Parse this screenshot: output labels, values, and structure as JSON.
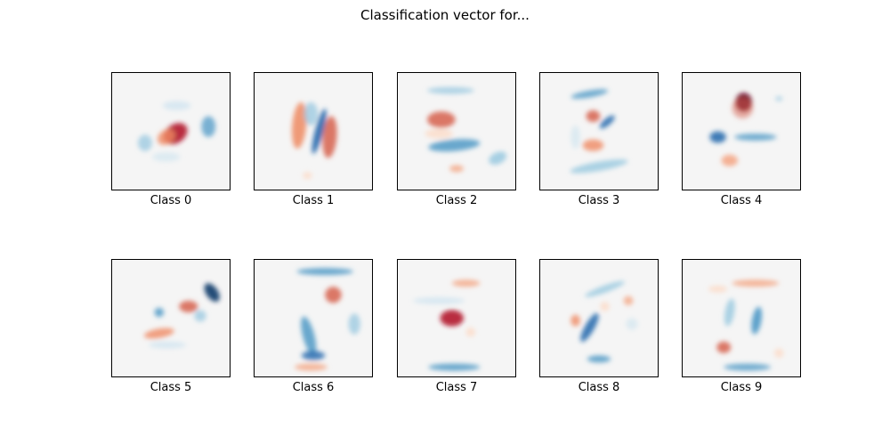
{
  "title": "Classification vector for...",
  "chart_data": {
    "type": "heatmap",
    "title": "Classification vector for...",
    "colormap": "RdBu",
    "background_color": "#f5f5f5",
    "panels": [
      {
        "label": "Class 0",
        "blobs": [
          {
            "x": 0.54,
            "y": 0.52,
            "w": 0.11,
            "h": 0.08,
            "rot": -35,
            "color": "#b2182b",
            "opacity": 0.9
          },
          {
            "x": 0.46,
            "y": 0.55,
            "w": 0.08,
            "h": 0.06,
            "rot": -35,
            "color": "#ef8a62",
            "opacity": 0.8
          },
          {
            "x": 0.82,
            "y": 0.46,
            "w": 0.06,
            "h": 0.09,
            "rot": 0,
            "color": "#4393c3",
            "opacity": 0.7
          },
          {
            "x": 0.28,
            "y": 0.6,
            "w": 0.06,
            "h": 0.07,
            "rot": 0,
            "color": "#92c5de",
            "opacity": 0.7
          },
          {
            "x": 0.55,
            "y": 0.28,
            "w": 0.12,
            "h": 0.04,
            "rot": 0,
            "color": "#d1e5f0",
            "opacity": 0.8
          },
          {
            "x": 0.46,
            "y": 0.72,
            "w": 0.12,
            "h": 0.04,
            "rot": 0,
            "color": "#d1e5f0",
            "opacity": 0.7
          }
        ]
      },
      {
        "label": "Class 1",
        "blobs": [
          {
            "x": 0.55,
            "y": 0.5,
            "w": 0.035,
            "h": 0.2,
            "rot": 15,
            "color": "#2166ac",
            "opacity": 0.9
          },
          {
            "x": 0.38,
            "y": 0.45,
            "w": 0.06,
            "h": 0.2,
            "rot": 5,
            "color": "#ef8a62",
            "opacity": 0.85
          },
          {
            "x": 0.64,
            "y": 0.55,
            "w": 0.06,
            "h": 0.18,
            "rot": 5,
            "color": "#d6604d",
            "opacity": 0.85
          },
          {
            "x": 0.48,
            "y": 0.35,
            "w": 0.06,
            "h": 0.1,
            "rot": 0,
            "color": "#92c5de",
            "opacity": 0.7
          },
          {
            "x": 0.45,
            "y": 0.88,
            "w": 0.04,
            "h": 0.03,
            "rot": 0,
            "color": "#fddbc7",
            "opacity": 0.8
          }
        ]
      },
      {
        "label": "Class 2",
        "blobs": [
          {
            "x": 0.37,
            "y": 0.4,
            "w": 0.12,
            "h": 0.07,
            "rot": 0,
            "color": "#d6604d",
            "opacity": 0.85
          },
          {
            "x": 0.48,
            "y": 0.62,
            "w": 0.22,
            "h": 0.05,
            "rot": -5,
            "color": "#4393c3",
            "opacity": 0.8
          },
          {
            "x": 0.85,
            "y": 0.73,
            "w": 0.08,
            "h": 0.05,
            "rot": -25,
            "color": "#92c5de",
            "opacity": 0.8
          },
          {
            "x": 0.45,
            "y": 0.15,
            "w": 0.2,
            "h": 0.03,
            "rot": 0,
            "color": "#92c5de",
            "opacity": 0.7
          },
          {
            "x": 0.5,
            "y": 0.82,
            "w": 0.06,
            "h": 0.03,
            "rot": 0,
            "color": "#f4a582",
            "opacity": 0.8
          },
          {
            "x": 0.35,
            "y": 0.52,
            "w": 0.12,
            "h": 0.04,
            "rot": 0,
            "color": "#fddbc7",
            "opacity": 0.8
          }
        ]
      },
      {
        "label": "Class 3",
        "blobs": [
          {
            "x": 0.45,
            "y": 0.37,
            "w": 0.06,
            "h": 0.05,
            "rot": 0,
            "color": "#d6604d",
            "opacity": 0.85
          },
          {
            "x": 0.57,
            "y": 0.42,
            "w": 0.08,
            "h": 0.03,
            "rot": -40,
            "color": "#2166ac",
            "opacity": 0.85
          },
          {
            "x": 0.45,
            "y": 0.62,
            "w": 0.09,
            "h": 0.05,
            "rot": 0,
            "color": "#ef8a62",
            "opacity": 0.8
          },
          {
            "x": 0.42,
            "y": 0.18,
            "w": 0.16,
            "h": 0.03,
            "rot": -10,
            "color": "#4393c3",
            "opacity": 0.75
          },
          {
            "x": 0.5,
            "y": 0.8,
            "w": 0.25,
            "h": 0.04,
            "rot": -10,
            "color": "#92c5de",
            "opacity": 0.75
          },
          {
            "x": 0.3,
            "y": 0.55,
            "w": 0.04,
            "h": 0.1,
            "rot": 0,
            "color": "#d1e5f0",
            "opacity": 0.7
          }
        ]
      },
      {
        "label": "Class 4",
        "blobs": [
          {
            "x": 0.52,
            "y": 0.25,
            "w": 0.07,
            "h": 0.08,
            "rot": 0,
            "color": "#67001f",
            "opacity": 0.9
          },
          {
            "x": 0.51,
            "y": 0.3,
            "w": 0.09,
            "h": 0.09,
            "rot": 0,
            "color": "#d6604d",
            "opacity": 0.5
          },
          {
            "x": 0.3,
            "y": 0.55,
            "w": 0.07,
            "h": 0.05,
            "rot": 0,
            "color": "#2166ac",
            "opacity": 0.85
          },
          {
            "x": 0.62,
            "y": 0.55,
            "w": 0.18,
            "h": 0.03,
            "rot": 0,
            "color": "#4393c3",
            "opacity": 0.75
          },
          {
            "x": 0.4,
            "y": 0.75,
            "w": 0.07,
            "h": 0.05,
            "rot": 0,
            "color": "#f4a582",
            "opacity": 0.85
          },
          {
            "x": 0.82,
            "y": 0.22,
            "w": 0.03,
            "h": 0.02,
            "rot": 0,
            "color": "#92c5de",
            "opacity": 0.7
          }
        ]
      },
      {
        "label": "Class 5",
        "blobs": [
          {
            "x": 0.85,
            "y": 0.28,
            "w": 0.05,
            "h": 0.09,
            "rot": -35,
            "color": "#053061",
            "opacity": 0.85
          },
          {
            "x": 0.65,
            "y": 0.4,
            "w": 0.08,
            "h": 0.05,
            "rot": 0,
            "color": "#d6604d",
            "opacity": 0.85
          },
          {
            "x": 0.4,
            "y": 0.63,
            "w": 0.13,
            "h": 0.04,
            "rot": -10,
            "color": "#ef8a62",
            "opacity": 0.8
          },
          {
            "x": 0.4,
            "y": 0.45,
            "w": 0.04,
            "h": 0.04,
            "rot": 0,
            "color": "#4393c3",
            "opacity": 0.8
          },
          {
            "x": 0.47,
            "y": 0.73,
            "w": 0.16,
            "h": 0.03,
            "rot": 0,
            "color": "#d1e5f0",
            "opacity": 0.8
          },
          {
            "x": 0.75,
            "y": 0.48,
            "w": 0.05,
            "h": 0.05,
            "rot": 0,
            "color": "#92c5de",
            "opacity": 0.7
          }
        ]
      },
      {
        "label": "Class 6",
        "blobs": [
          {
            "x": 0.67,
            "y": 0.3,
            "w": 0.07,
            "h": 0.07,
            "rot": 0,
            "color": "#d6604d",
            "opacity": 0.85
          },
          {
            "x": 0.6,
            "y": 0.1,
            "w": 0.24,
            "h": 0.03,
            "rot": 0,
            "color": "#4393c3",
            "opacity": 0.8
          },
          {
            "x": 0.46,
            "y": 0.65,
            "w": 0.05,
            "h": 0.17,
            "rot": -15,
            "color": "#4393c3",
            "opacity": 0.8
          },
          {
            "x": 0.5,
            "y": 0.82,
            "w": 0.1,
            "h": 0.04,
            "rot": 0,
            "color": "#2166ac",
            "opacity": 0.8
          },
          {
            "x": 0.85,
            "y": 0.55,
            "w": 0.05,
            "h": 0.09,
            "rot": 0,
            "color": "#92c5de",
            "opacity": 0.7
          },
          {
            "x": 0.48,
            "y": 0.92,
            "w": 0.14,
            "h": 0.03,
            "rot": 0,
            "color": "#f4a582",
            "opacity": 0.8
          }
        ]
      },
      {
        "label": "Class 7",
        "blobs": [
          {
            "x": 0.46,
            "y": 0.5,
            "w": 0.1,
            "h": 0.07,
            "rot": 0,
            "color": "#b2182b",
            "opacity": 0.9
          },
          {
            "x": 0.58,
            "y": 0.2,
            "w": 0.12,
            "h": 0.03,
            "rot": 0,
            "color": "#f4a582",
            "opacity": 0.8
          },
          {
            "x": 0.48,
            "y": 0.92,
            "w": 0.22,
            "h": 0.03,
            "rot": 0,
            "color": "#4393c3",
            "opacity": 0.8
          },
          {
            "x": 0.35,
            "y": 0.35,
            "w": 0.22,
            "h": 0.03,
            "rot": 0,
            "color": "#d1e5f0",
            "opacity": 0.8
          },
          {
            "x": 0.62,
            "y": 0.62,
            "w": 0.04,
            "h": 0.04,
            "rot": 0,
            "color": "#fddbc7",
            "opacity": 0.8
          }
        ]
      },
      {
        "label": "Class 8",
        "blobs": [
          {
            "x": 0.42,
            "y": 0.58,
            "w": 0.04,
            "h": 0.14,
            "rot": 30,
            "color": "#2166ac",
            "opacity": 0.85
          },
          {
            "x": 0.5,
            "y": 0.85,
            "w": 0.1,
            "h": 0.03,
            "rot": 0,
            "color": "#4393c3",
            "opacity": 0.8
          },
          {
            "x": 0.3,
            "y": 0.52,
            "w": 0.04,
            "h": 0.05,
            "rot": 0,
            "color": "#ef8a62",
            "opacity": 0.8
          },
          {
            "x": 0.75,
            "y": 0.35,
            "w": 0.04,
            "h": 0.04,
            "rot": 0,
            "color": "#f4a582",
            "opacity": 0.8
          },
          {
            "x": 0.55,
            "y": 0.4,
            "w": 0.04,
            "h": 0.04,
            "rot": 0,
            "color": "#fddbc7",
            "opacity": 0.8
          },
          {
            "x": 0.55,
            "y": 0.25,
            "w": 0.18,
            "h": 0.03,
            "rot": -20,
            "color": "#92c5de",
            "opacity": 0.75
          },
          {
            "x": 0.78,
            "y": 0.55,
            "w": 0.05,
            "h": 0.05,
            "rot": 0,
            "color": "#d1e5f0",
            "opacity": 0.7
          }
        ]
      },
      {
        "label": "Class 9",
        "blobs": [
          {
            "x": 0.35,
            "y": 0.75,
            "w": 0.06,
            "h": 0.05,
            "rot": 0,
            "color": "#d6604d",
            "opacity": 0.85
          },
          {
            "x": 0.62,
            "y": 0.2,
            "w": 0.2,
            "h": 0.03,
            "rot": 0,
            "color": "#f4a582",
            "opacity": 0.8
          },
          {
            "x": 0.63,
            "y": 0.52,
            "w": 0.04,
            "h": 0.12,
            "rot": 10,
            "color": "#4393c3",
            "opacity": 0.85
          },
          {
            "x": 0.4,
            "y": 0.45,
            "w": 0.04,
            "h": 0.12,
            "rot": 10,
            "color": "#92c5de",
            "opacity": 0.75
          },
          {
            "x": 0.55,
            "y": 0.92,
            "w": 0.2,
            "h": 0.03,
            "rot": 0,
            "color": "#4393c3",
            "opacity": 0.75
          },
          {
            "x": 0.3,
            "y": 0.25,
            "w": 0.08,
            "h": 0.03,
            "rot": 0,
            "color": "#fddbc7",
            "opacity": 0.8
          },
          {
            "x": 0.82,
            "y": 0.8,
            "w": 0.04,
            "h": 0.04,
            "rot": 0,
            "color": "#fddbc7",
            "opacity": 0.8
          }
        ]
      }
    ]
  }
}
